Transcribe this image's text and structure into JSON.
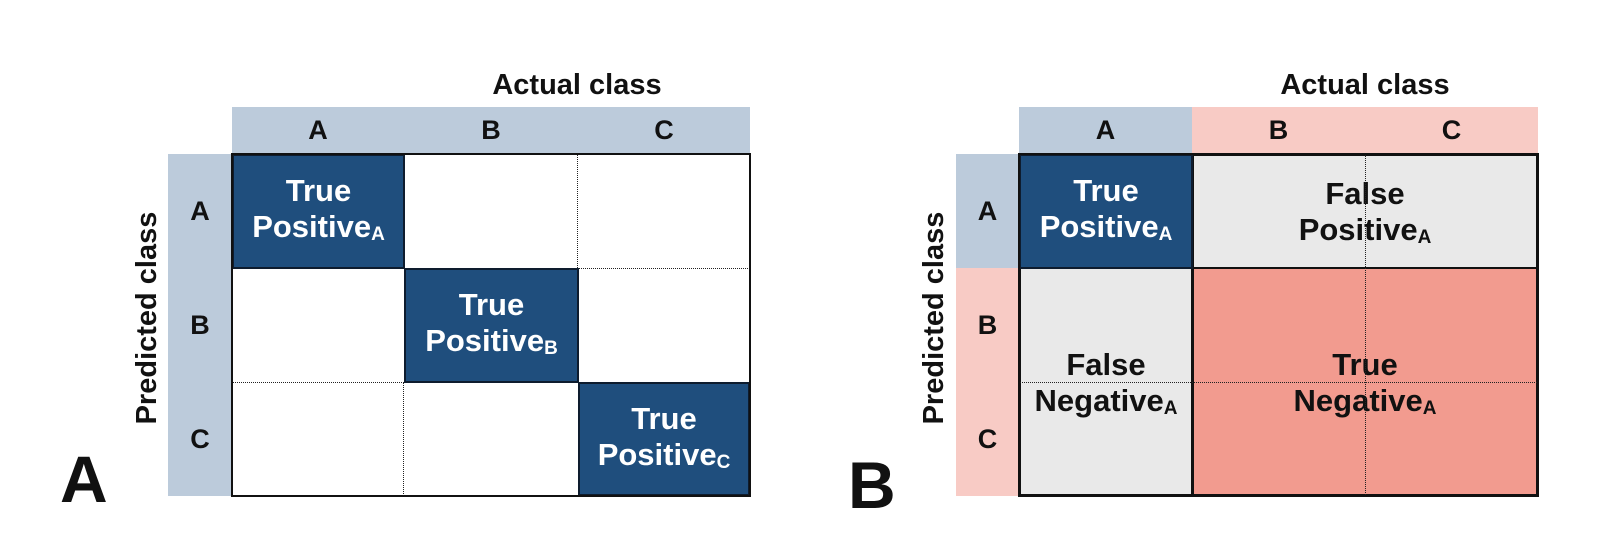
{
  "panel_a": {
    "letter": "A",
    "x_title": "Actual class",
    "y_title": "Predicted class",
    "columns": [
      "A",
      "B",
      "C"
    ],
    "rows": [
      "A",
      "B",
      "C"
    ],
    "cells": {
      "aa": {
        "line1": "True",
        "line2": "Positive",
        "sub": "A"
      },
      "bb": {
        "line1": "True",
        "line2": "Positive",
        "sub": "B"
      },
      "cc": {
        "line1": "True",
        "line2": "Positive",
        "sub": "C"
      }
    }
  },
  "panel_b": {
    "letter": "B",
    "x_title": "Actual class",
    "y_title": "Predicted class",
    "columns": [
      "A",
      "B",
      "C"
    ],
    "rows": [
      "A",
      "B",
      "C"
    ],
    "cells": {
      "tp": {
        "line1": "True",
        "line2": "Positive",
        "sub": "A"
      },
      "fp": {
        "line1": "False",
        "line2": "Positive",
        "sub": "A"
      },
      "fn": {
        "line1": "False",
        "line2": "Negative",
        "sub": "A"
      },
      "tn": {
        "line1": "True",
        "line2": "Negative",
        "sub": "A"
      }
    }
  },
  "colors": {
    "true_positive": "#1f4e7d",
    "false_cell": "#e9e9e9",
    "true_negative": "#f29b8f",
    "header_blue": "#bccbdb",
    "header_pink": "#f8cbc5"
  }
}
